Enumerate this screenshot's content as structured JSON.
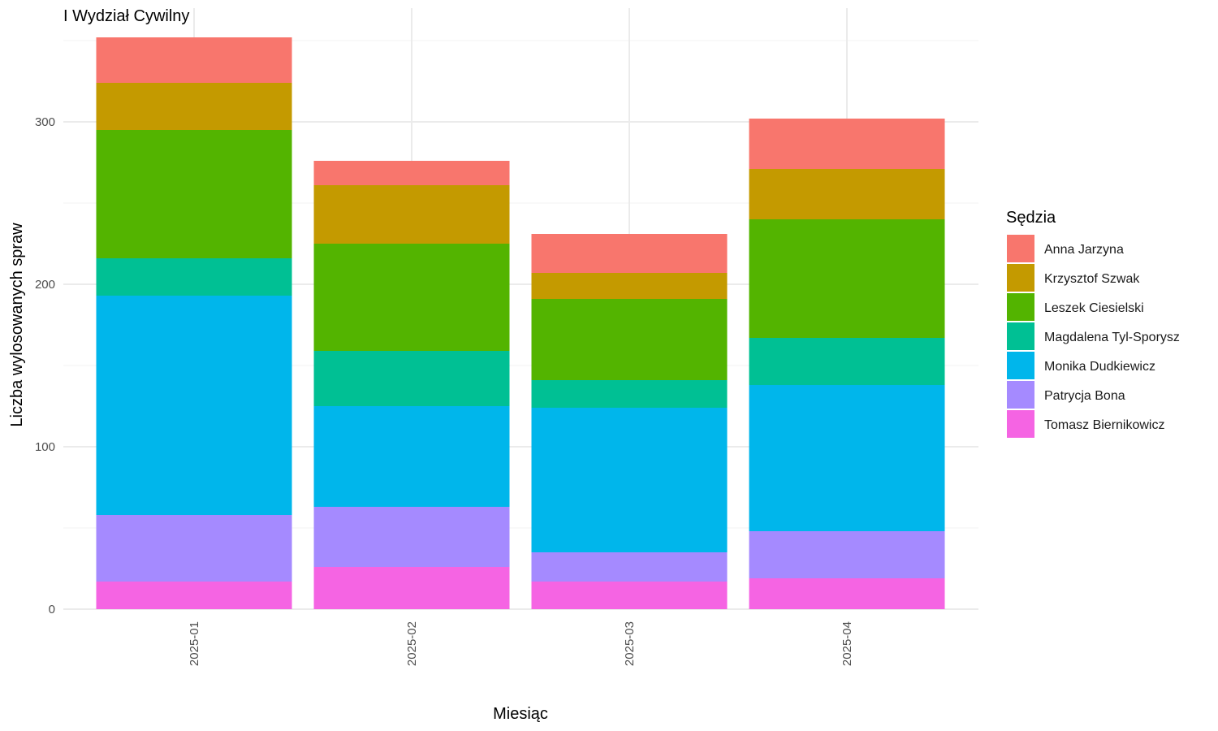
{
  "chart_data": {
    "type": "bar",
    "stacked": true,
    "title": "I Wydział Cywilny",
    "xlabel": "Miesiąc",
    "ylabel": "Liczba wylosowanych spraw",
    "ylim": [
      0,
      352
    ],
    "yticks": [
      0,
      100,
      200,
      300
    ],
    "grid": true,
    "legend_title": "Sędzia",
    "legend_position": "right",
    "categories": [
      "2025-01",
      "2025-02",
      "2025-03",
      "2025-04"
    ],
    "series": [
      {
        "name": "Tomasz Biernikowicz",
        "color": "#F564E3",
        "values": [
          17,
          26,
          17,
          19
        ]
      },
      {
        "name": "Patrycja Bona",
        "color": "#A58AFF",
        "values": [
          41,
          37,
          18,
          29
        ]
      },
      {
        "name": "Monika Dudkiewicz",
        "color": "#00B6EB",
        "values": [
          135,
          62,
          89,
          90
        ]
      },
      {
        "name": "Magdalena Tyl-Sporysz",
        "color": "#00C094",
        "values": [
          23,
          34,
          17,
          29
        ]
      },
      {
        "name": "Leszek Ciesielski",
        "color": "#53B400",
        "values": [
          79,
          66,
          50,
          73
        ]
      },
      {
        "name": "Krzysztof Szwak",
        "color": "#C49A00",
        "values": [
          29,
          36,
          16,
          31
        ]
      },
      {
        "name": "Anna Jarzyna",
        "color": "#F8766D",
        "values": [
          28,
          15,
          24,
          31
        ]
      }
    ],
    "legend_order": [
      "Anna Jarzyna",
      "Krzysztof Szwak",
      "Leszek Ciesielski",
      "Magdalena Tyl-Sporysz",
      "Monika Dudkiewicz",
      "Patrycja Bona",
      "Tomasz Biernikowicz"
    ]
  }
}
